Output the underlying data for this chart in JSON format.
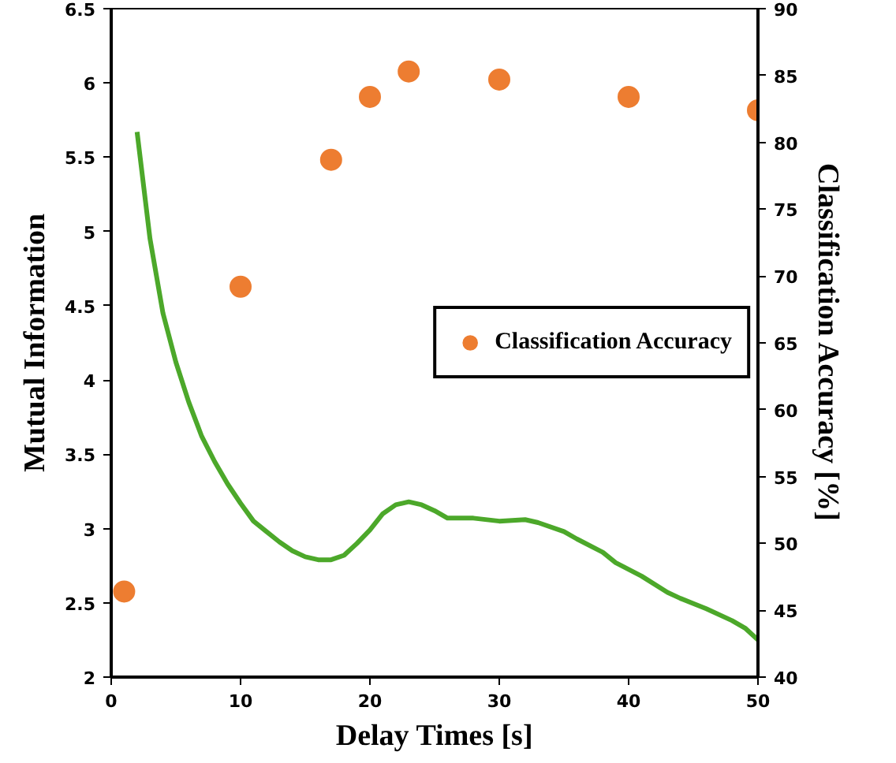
{
  "chart_data": {
    "type": "line",
    "xlabel": "Delay Times [s]",
    "ylabel": "Mutual Information",
    "y2label": "Classification Accuracy [%]",
    "xlim": [
      0,
      50
    ],
    "xticks": [
      0,
      10,
      20,
      30,
      40,
      50
    ],
    "ylim": [
      2,
      6.5
    ],
    "yticks": [
      2,
      2.5,
      3,
      3.5,
      4,
      4.5,
      5,
      5.5,
      6,
      6.5
    ],
    "y2lim": [
      40,
      90
    ],
    "y2ticks": [
      40,
      45,
      50,
      55,
      60,
      65,
      70,
      75,
      80,
      85,
      90
    ],
    "grid": false,
    "legend": "right",
    "series": [
      {
        "color": "#4ca82a",
        "marker": "none",
        "x": [
          2,
          3,
          4,
          5,
          6,
          7,
          8,
          9,
          10,
          11,
          12,
          13,
          14,
          15,
          16,
          17,
          18,
          19,
          20,
          21,
          22,
          23,
          24,
          25,
          26,
          28,
          30,
          32,
          33,
          35,
          36,
          38,
          39,
          41,
          43,
          44,
          46,
          48,
          49,
          50
        ],
        "values": [
          5.67,
          4.95,
          4.45,
          4.12,
          3.85,
          3.62,
          3.45,
          3.3,
          3.17,
          3.05,
          2.98,
          2.91,
          2.85,
          2.81,
          2.79,
          2.79,
          2.82,
          2.9,
          2.99,
          3.1,
          3.16,
          3.18,
          3.16,
          3.12,
          3.07,
          3.07,
          3.05,
          3.06,
          3.04,
          2.98,
          2.93,
          2.84,
          2.77,
          2.68,
          2.57,
          2.53,
          2.46,
          2.38,
          2.33,
          2.25
        ]
      },
      {
        "type": "scatter",
        "name": "Classification Accuracy",
        "color": "#ed7d31",
        "marker": "circle",
        "axis": "y2",
        "x": [
          1,
          10,
          17,
          20,
          23,
          30,
          40,
          50
        ],
        "values": [
          46.4,
          69.2,
          78.7,
          83.4,
          85.3,
          84.7,
          83.4,
          82.4
        ]
      }
    ]
  }
}
